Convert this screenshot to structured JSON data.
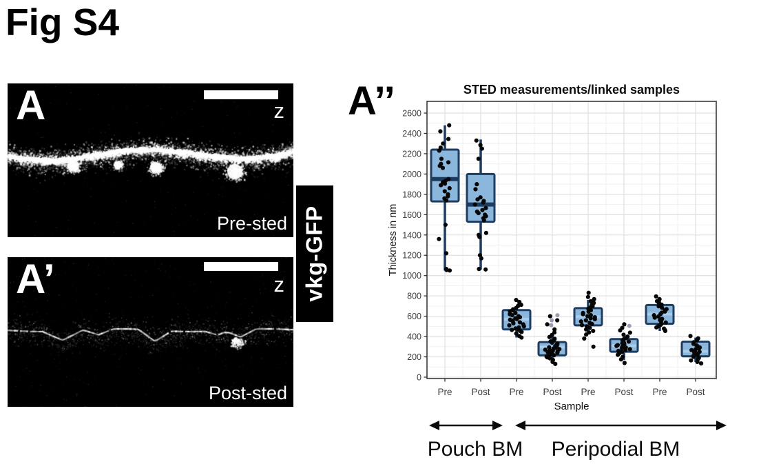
{
  "figure_title": "Fig S4",
  "micrographs": {
    "pre": {
      "panel_label": "A",
      "axis_label": "z",
      "caption": "Pre-sted"
    },
    "post": {
      "panel_label": "A’",
      "axis_label": "z",
      "caption": "Post-sted"
    },
    "stain_label": "vkg-GFP"
  },
  "chart_panel_label": "A’’",
  "chart_data": {
    "type": "boxplot_jitter",
    "title": "STED measurements/linked samples",
    "xlabel": "Sample",
    "ylabel": "Thickness in nm",
    "ylim": [
      0,
      2700
    ],
    "yticks": [
      0,
      200,
      400,
      600,
      800,
      1000,
      1200,
      1400,
      1600,
      1800,
      2000,
      2200,
      2400,
      2600
    ],
    "grid": true,
    "categories": [
      "Pre",
      "Post",
      "Pre",
      "Post",
      "Pre",
      "Post",
      "Pre",
      "Post"
    ],
    "region_spans": [
      {
        "label": "Pouch BM",
        "from": 0,
        "to": 1
      },
      {
        "label": "Peripodial BM",
        "from": 2,
        "to": 7
      }
    ],
    "colors": {
      "box_fill": "#8cb7dc",
      "box_stroke": "#1d3c5f",
      "median_dark": "#1d3c5f",
      "median_light": "#a9cce9",
      "point": "#060606",
      "faint_point": "#8f89a4",
      "grid_major": "#e2e2e2",
      "grid_minor": "#f0f0f0",
      "panel_border": "#3a3a3a",
      "tick_label": "#3d3d3d",
      "axis_title": "#111111"
    },
    "groups": [
      {
        "category": "Pre",
        "region": "Pouch BM",
        "median_style": "dark",
        "stats": {
          "lo": 1050,
          "q1": 1730,
          "med": 1950,
          "q3": 2240,
          "hi": 2480
        },
        "points": [
          1050,
          1055,
          1065,
          1220,
          1360,
          1500,
          1740,
          1760,
          1780,
          1800,
          1830,
          1860,
          1890,
          1905,
          1920,
          1935,
          1950,
          2060,
          2080,
          2100,
          2115,
          2150,
          2230,
          2260,
          2300,
          2345,
          2420,
          2480
        ],
        "faint_points": []
      },
      {
        "category": "Post",
        "region": "Pouch BM",
        "median_style": "dark",
        "stats": {
          "lo": 1060,
          "q1": 1530,
          "med": 1700,
          "q3": 2000,
          "hi": 2340
        },
        "points": [
          1060,
          1065,
          1170,
          1200,
          1380,
          1400,
          1420,
          1545,
          1565,
          1585,
          1600,
          1615,
          1630,
          1645,
          1665,
          1700,
          1720,
          1735,
          1750,
          1770,
          1850,
          1900,
          2150,
          2250,
          2285,
          2330
        ],
        "faint_points": []
      },
      {
        "category": "Pre",
        "region": "Peripodial BM",
        "median_style": "light",
        "stats": {
          "lo": 390,
          "q1": 470,
          "med": 570,
          "q3": 660,
          "hi": 700
        },
        "points": [
          390,
          405,
          430,
          445,
          455,
          465,
          470,
          480,
          490,
          500,
          510,
          520,
          530,
          540,
          550,
          558,
          565,
          572,
          580,
          590,
          600,
          610,
          620,
          632,
          645,
          658,
          668,
          680,
          700,
          712,
          725,
          740,
          760
        ],
        "faint_points": []
      },
      {
        "category": "Post",
        "region": "Peripodial BM",
        "median_style": "light",
        "stats": {
          "lo": 140,
          "q1": 215,
          "med": 295,
          "q3": 345,
          "hi": 430
        },
        "points": [
          130,
          150,
          170,
          185,
          195,
          205,
          215,
          222,
          228,
          234,
          240,
          246,
          252,
          258,
          264,
          270,
          276,
          282,
          288,
          294,
          300,
          306,
          314,
          322,
          330,
          340,
          352,
          364,
          378,
          395,
          415,
          440,
          470,
          520,
          560,
          600
        ],
        "faint_points": [
          610,
          560,
          512
        ]
      },
      {
        "category": "Pre",
        "region": "Peripodial BM",
        "median_style": "light",
        "stats": {
          "lo": 420,
          "q1": 510,
          "med": 595,
          "q3": 680,
          "hi": 760
        },
        "points": [
          300,
          380,
          420,
          440,
          455,
          470,
          485,
          500,
          512,
          524,
          536,
          548,
          560,
          570,
          580,
          590,
          600,
          610,
          620,
          632,
          645,
          658,
          672,
          686,
          700,
          715,
          730,
          748,
          768,
          790,
          830
        ],
        "faint_points": []
      },
      {
        "category": "Post",
        "region": "Peripodial BM",
        "median_style": "light",
        "stats": {
          "lo": 170,
          "q1": 250,
          "med": 310,
          "q3": 375,
          "hi": 410
        },
        "points": [
          140,
          175,
          200,
          220,
          235,
          248,
          258,
          268,
          276,
          284,
          292,
          300,
          308,
          316,
          324,
          332,
          340,
          350,
          360,
          372,
          385,
          400,
          418,
          438,
          460,
          485,
          520
        ],
        "faint_points": [
          505
        ]
      },
      {
        "category": "Pre",
        "region": "Peripodial BM",
        "median_style": "light",
        "stats": {
          "lo": 455,
          "q1": 525,
          "med": 620,
          "q3": 710,
          "hi": 780
        },
        "points": [
          455,
          465,
          478,
          490,
          502,
          514,
          526,
          538,
          550,
          562,
          574,
          586,
          598,
          610,
          622,
          634,
          646,
          658,
          670,
          684,
          698,
          714,
          730,
          748,
          768,
          795
        ],
        "faint_points": []
      },
      {
        "category": "Post",
        "region": "Peripodial BM",
        "median_style": "light",
        "stats": {
          "lo": 150,
          "q1": 205,
          "med": 255,
          "q3": 350,
          "hi": 390
        },
        "points": [
          135,
          150,
          165,
          178,
          190,
          200,
          210,
          218,
          226,
          234,
          242,
          250,
          258,
          266,
          274,
          282,
          292,
          302,
          314,
          328,
          344,
          362,
          382,
          405
        ],
        "faint_points": []
      }
    ]
  }
}
